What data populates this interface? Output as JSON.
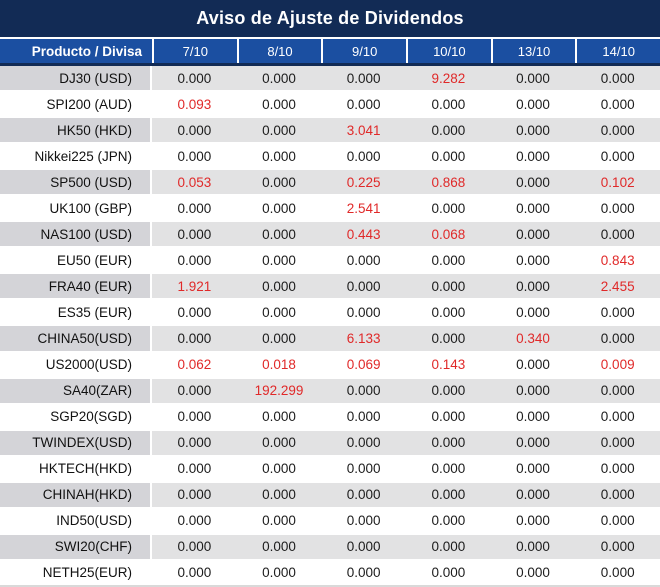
{
  "title": "Aviso de Ajuste de Dividendos",
  "colors": {
    "title_bg": "#122b55",
    "header_bg": "#1b4fa1",
    "stripe_value_bg": "#e2e2e3",
    "stripe_label_bg": "#d4d4d8",
    "highlight_red": "#e02929",
    "text_color": "#1c1c1c"
  },
  "chart_data": {
    "type": "table",
    "title": "Aviso de Ajuste de Dividendos",
    "columns": [
      "Producto / Divisa",
      "7/10",
      "8/10",
      "9/10",
      "10/10",
      "13/10",
      "14/10"
    ],
    "rows": [
      {
        "product": "DJ30 (USD)",
        "values": [
          "0.000",
          "0.000",
          "0.000",
          "9.282",
          "0.000",
          "0.000"
        ],
        "red_indices": [
          3
        ]
      },
      {
        "product": "SPI200 (AUD)",
        "values": [
          "0.093",
          "0.000",
          "0.000",
          "0.000",
          "0.000",
          "0.000"
        ],
        "red_indices": [
          0
        ]
      },
      {
        "product": "HK50 (HKD)",
        "values": [
          "0.000",
          "0.000",
          "3.041",
          "0.000",
          "0.000",
          "0.000"
        ],
        "red_indices": [
          2
        ]
      },
      {
        "product": "Nikkei225 (JPN)",
        "values": [
          "0.000",
          "0.000",
          "0.000",
          "0.000",
          "0.000",
          "0.000"
        ],
        "red_indices": []
      },
      {
        "product": "SP500 (USD)",
        "values": [
          "0.053",
          "0.000",
          "0.225",
          "0.868",
          "0.000",
          "0.102"
        ],
        "red_indices": [
          0,
          2,
          3,
          5
        ]
      },
      {
        "product": "UK100 (GBP)",
        "values": [
          "0.000",
          "0.000",
          "2.541",
          "0.000",
          "0.000",
          "0.000"
        ],
        "red_indices": [
          2
        ]
      },
      {
        "product": "NAS100 (USD)",
        "values": [
          "0.000",
          "0.000",
          "0.443",
          "0.068",
          "0.000",
          "0.000"
        ],
        "red_indices": [
          2,
          3
        ]
      },
      {
        "product": "EU50 (EUR)",
        "values": [
          "0.000",
          "0.000",
          "0.000",
          "0.000",
          "0.000",
          "0.843"
        ],
        "red_indices": [
          5
        ]
      },
      {
        "product": "FRA40 (EUR)",
        "values": [
          "1.921",
          "0.000",
          "0.000",
          "0.000",
          "0.000",
          "2.455"
        ],
        "red_indices": [
          0,
          5
        ]
      },
      {
        "product": "ES35 (EUR)",
        "values": [
          "0.000",
          "0.000",
          "0.000",
          "0.000",
          "0.000",
          "0.000"
        ],
        "red_indices": []
      },
      {
        "product": "CHINA50(USD)",
        "values": [
          "0.000",
          "0.000",
          "6.133",
          "0.000",
          "0.340",
          "0.000"
        ],
        "red_indices": [
          2,
          4
        ]
      },
      {
        "product": "US2000(USD)",
        "values": [
          "0.062",
          "0.018",
          "0.069",
          "0.143",
          "0.000",
          "0.009"
        ],
        "red_indices": [
          0,
          1,
          2,
          3,
          5
        ]
      },
      {
        "product": "SA40(ZAR)",
        "values": [
          "0.000",
          "192.299",
          "0.000",
          "0.000",
          "0.000",
          "0.000"
        ],
        "red_indices": [
          1
        ]
      },
      {
        "product": "SGP20(SGD)",
        "values": [
          "0.000",
          "0.000",
          "0.000",
          "0.000",
          "0.000",
          "0.000"
        ],
        "red_indices": []
      },
      {
        "product": "TWINDEX(USD)",
        "values": [
          "0.000",
          "0.000",
          "0.000",
          "0.000",
          "0.000",
          "0.000"
        ],
        "red_indices": []
      },
      {
        "product": "HKTECH(HKD)",
        "values": [
          "0.000",
          "0.000",
          "0.000",
          "0.000",
          "0.000",
          "0.000"
        ],
        "red_indices": []
      },
      {
        "product": "CHINAH(HKD)",
        "values": [
          "0.000",
          "0.000",
          "0.000",
          "0.000",
          "0.000",
          "0.000"
        ],
        "red_indices": []
      },
      {
        "product": "IND50(USD)",
        "values": [
          "0.000",
          "0.000",
          "0.000",
          "0.000",
          "0.000",
          "0.000"
        ],
        "red_indices": []
      },
      {
        "product": "SWI20(CHF)",
        "values": [
          "0.000",
          "0.000",
          "0.000",
          "0.000",
          "0.000",
          "0.000"
        ],
        "red_indices": []
      },
      {
        "product": "NETH25(EUR)",
        "values": [
          "0.000",
          "0.000",
          "0.000",
          "0.000",
          "0.000",
          "0.000"
        ],
        "red_indices": []
      }
    ]
  }
}
